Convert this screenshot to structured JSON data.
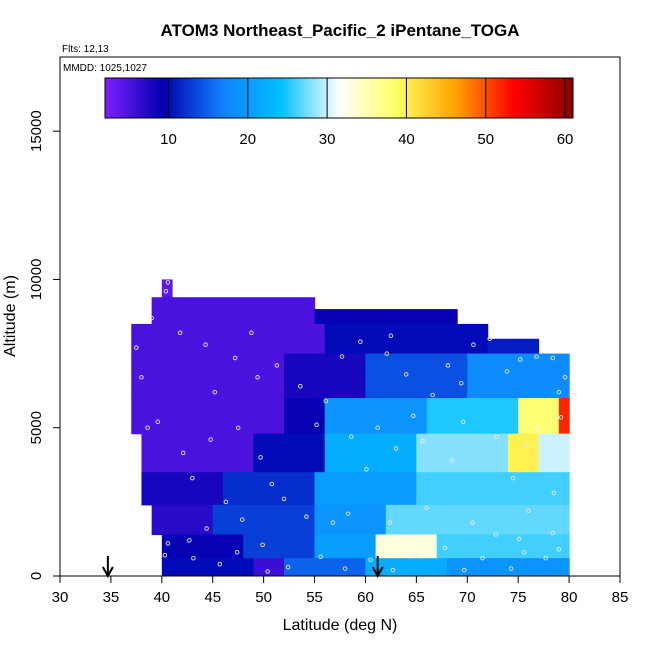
{
  "chart_data": {
    "type": "heatmap",
    "title": "ATOM3 Northeast_Pacific_2 iPentane_TOGA",
    "flights_label": "Flts: 12,13",
    "dates_label": "MMDD: 1025,1027",
    "xlabel": "Latitude (deg N)",
    "ylabel": "Altitude (m)",
    "xlim": [
      30,
      85
    ],
    "ylim": [
      0,
      17500
    ],
    "x_ticks": [
      "30",
      "35",
      "40",
      "45",
      "50",
      "55",
      "60",
      "65",
      "70",
      "75",
      "80",
      "85"
    ],
    "y_ticks": [
      "0",
      "5000",
      "10000",
      "15000"
    ],
    "colorbar": {
      "range": [
        2,
        61
      ],
      "ticks": [
        "10",
        "20",
        "30",
        "40",
        "50",
        "60"
      ],
      "palette": [
        "#7f1fff",
        "#0000b0",
        "#1080ff",
        "#00bfff",
        "#ffffff",
        "#ffff60",
        "#ffa000",
        "#ff0000",
        "#8b0000"
      ]
    },
    "arrows_lat": [
      34.7,
      61.2
    ],
    "cells": [
      {
        "lat": [
          40,
          41
        ],
        "alt": [
          9400,
          10000
        ],
        "v": 4
      },
      {
        "lat": [
          39,
          55
        ],
        "alt": [
          8500,
          9400
        ],
        "v": 5
      },
      {
        "lat": [
          55,
          69
        ],
        "alt": [
          8500,
          9000
        ],
        "v": 9
      },
      {
        "lat": [
          37,
          56
        ],
        "alt": [
          7500,
          8500
        ],
        "v": 5
      },
      {
        "lat": [
          56,
          72
        ],
        "alt": [
          7500,
          8500
        ],
        "v": 10
      },
      {
        "lat": [
          72,
          77
        ],
        "alt": [
          7500,
          8000
        ],
        "v": 11
      },
      {
        "lat": [
          37,
          52
        ],
        "alt": [
          6000,
          7500
        ],
        "v": 5
      },
      {
        "lat": [
          52,
          60
        ],
        "alt": [
          6000,
          7500
        ],
        "v": 8
      },
      {
        "lat": [
          60,
          70
        ],
        "alt": [
          6000,
          7500
        ],
        "v": 14
      },
      {
        "lat": [
          70,
          80
        ],
        "alt": [
          6000,
          7500
        ],
        "v": 18
      },
      {
        "lat": [
          37,
          52
        ],
        "alt": [
          4800,
          6000
        ],
        "v": 5
      },
      {
        "lat": [
          52,
          56
        ],
        "alt": [
          4800,
          6000
        ],
        "v": 9
      },
      {
        "lat": [
          56,
          66
        ],
        "alt": [
          4800,
          6000
        ],
        "v": 19
      },
      {
        "lat": [
          66,
          75
        ],
        "alt": [
          4800,
          6000
        ],
        "v": 25
      },
      {
        "lat": [
          75,
          79
        ],
        "alt": [
          4800,
          6000
        ],
        "v": 38
      },
      {
        "lat": [
          79,
          80
        ],
        "alt": [
          4800,
          6000
        ],
        "v": 52
      },
      {
        "lat": [
          38,
          49
        ],
        "alt": [
          3500,
          4800
        ],
        "v": 5
      },
      {
        "lat": [
          49,
          56
        ],
        "alt": [
          3500,
          4800
        ],
        "v": 10
      },
      {
        "lat": [
          56,
          65
        ],
        "alt": [
          3500,
          4800
        ],
        "v": 22
      },
      {
        "lat": [
          65,
          74
        ],
        "alt": [
          3500,
          4800
        ],
        "v": 28
      },
      {
        "lat": [
          74,
          77
        ],
        "alt": [
          3500,
          4800
        ],
        "v": 40
      },
      {
        "lat": [
          77,
          80
        ],
        "alt": [
          3500,
          4800
        ],
        "v": 30
      },
      {
        "lat": [
          38,
          46
        ],
        "alt": [
          2400,
          3500
        ],
        "v": 8
      },
      {
        "lat": [
          46,
          55
        ],
        "alt": [
          2400,
          3500
        ],
        "v": 12
      },
      {
        "lat": [
          55,
          65
        ],
        "alt": [
          2400,
          3500
        ],
        "v": 20
      },
      {
        "lat": [
          65,
          80
        ],
        "alt": [
          2400,
          3500
        ],
        "v": 26
      },
      {
        "lat": [
          39,
          45
        ],
        "alt": [
          1400,
          2400
        ],
        "v": 7
      },
      {
        "lat": [
          45,
          55
        ],
        "alt": [
          1400,
          2400
        ],
        "v": 13
      },
      {
        "lat": [
          55,
          62
        ],
        "alt": [
          1400,
          2400
        ],
        "v": 19
      },
      {
        "lat": [
          62,
          80
        ],
        "alt": [
          1400,
          2400
        ],
        "v": 27
      },
      {
        "lat": [
          40,
          48
        ],
        "alt": [
          600,
          1400
        ],
        "v": 9
      },
      {
        "lat": [
          48,
          55
        ],
        "alt": [
          600,
          1400
        ],
        "v": 13
      },
      {
        "lat": [
          55,
          61
        ],
        "alt": [
          600,
          1400
        ],
        "v": 20
      },
      {
        "lat": [
          61,
          67
        ],
        "alt": [
          600,
          1400
        ],
        "v": 33
      },
      {
        "lat": [
          67,
          80
        ],
        "alt": [
          600,
          1400
        ],
        "v": 26
      },
      {
        "lat": [
          40,
          49
        ],
        "alt": [
          0,
          600
        ],
        "v": 10
      },
      {
        "lat": [
          49,
          52
        ],
        "alt": [
          0,
          600
        ],
        "v": 6
      },
      {
        "lat": [
          52,
          60
        ],
        "alt": [
          0,
          600
        ],
        "v": 15
      },
      {
        "lat": [
          60,
          68
        ],
        "alt": [
          0,
          600
        ],
        "v": 22
      },
      {
        "lat": [
          68,
          80
        ],
        "alt": [
          0,
          600
        ],
        "v": 19
      }
    ],
    "points": [
      {
        "lat": 40.4,
        "alt": 9600
      },
      {
        "lat": 40.6,
        "alt": 9900
      },
      {
        "lat": 39.0,
        "alt": 8700
      },
      {
        "lat": 48.8,
        "alt": 8200
      },
      {
        "lat": 37.5,
        "alt": 7700
      },
      {
        "lat": 38.0,
        "alt": 6700
      },
      {
        "lat": 49.4,
        "alt": 6700
      },
      {
        "lat": 45.2,
        "alt": 6200
      },
      {
        "lat": 47.5,
        "alt": 5000
      },
      {
        "lat": 39.6,
        "alt": 5200
      },
      {
        "lat": 38.6,
        "alt": 5000
      },
      {
        "lat": 44.8,
        "alt": 4600
      },
      {
        "lat": 42.1,
        "alt": 4150
      },
      {
        "lat": 49.7,
        "alt": 4000
      },
      {
        "lat": 43.0,
        "alt": 3300
      },
      {
        "lat": 55.2,
        "alt": 5100
      },
      {
        "lat": 57.7,
        "alt": 7400
      },
      {
        "lat": 59.5,
        "alt": 7900
      },
      {
        "lat": 62.1,
        "alt": 7500
      },
      {
        "lat": 62.5,
        "alt": 8100
      },
      {
        "lat": 64.0,
        "alt": 6800
      },
      {
        "lat": 66.6,
        "alt": 6100
      },
      {
        "lat": 68.1,
        "alt": 7100
      },
      {
        "lat": 69.4,
        "alt": 6500
      },
      {
        "lat": 70.6,
        "alt": 7800
      },
      {
        "lat": 72.2,
        "alt": 8000
      },
      {
        "lat": 73.9,
        "alt": 6900
      },
      {
        "lat": 75.2,
        "alt": 7300
      },
      {
        "lat": 76.8,
        "alt": 7400
      },
      {
        "lat": 78.4,
        "alt": 7350
      },
      {
        "lat": 79.6,
        "alt": 6700
      },
      {
        "lat": 79.0,
        "alt": 6200
      },
      {
        "lat": 61.2,
        "alt": 5000
      },
      {
        "lat": 64.7,
        "alt": 5400
      },
      {
        "lat": 69.6,
        "alt": 5200
      },
      {
        "lat": 72.9,
        "alt": 4700
      },
      {
        "lat": 75.8,
        "alt": 4400
      },
      {
        "lat": 77.2,
        "alt": 3900
      },
      {
        "lat": 74.5,
        "alt": 3300
      },
      {
        "lat": 78.5,
        "alt": 2800
      },
      {
        "lat": 76.0,
        "alt": 2200
      },
      {
        "lat": 70.5,
        "alt": 1800
      },
      {
        "lat": 66.0,
        "alt": 2300
      },
      {
        "lat": 62.4,
        "alt": 1800
      },
      {
        "lat": 58.3,
        "alt": 2100
      },
      {
        "lat": 56.8,
        "alt": 1800
      },
      {
        "lat": 54.2,
        "alt": 2000
      },
      {
        "lat": 52.0,
        "alt": 2600
      },
      {
        "lat": 50.8,
        "alt": 3100
      },
      {
        "lat": 47.9,
        "alt": 1900
      },
      {
        "lat": 46.3,
        "alt": 2500
      },
      {
        "lat": 44.4,
        "alt": 1600
      },
      {
        "lat": 42.7,
        "alt": 1200
      },
      {
        "lat": 40.6,
        "alt": 1100
      },
      {
        "lat": 40.3,
        "alt": 700
      },
      {
        "lat": 43.1,
        "alt": 600
      },
      {
        "lat": 45.7,
        "alt": 400
      },
      {
        "lat": 47.4,
        "alt": 800
      },
      {
        "lat": 49.9,
        "alt": 1050
      },
      {
        "lat": 50.4,
        "alt": 150
      },
      {
        "lat": 52.4,
        "alt": 300
      },
      {
        "lat": 55.6,
        "alt": 650
      },
      {
        "lat": 58.0,
        "alt": 250
      },
      {
        "lat": 60.5,
        "alt": 550
      },
      {
        "lat": 62.7,
        "alt": 200
      },
      {
        "lat": 64.9,
        "alt": 700
      },
      {
        "lat": 67.8,
        "alt": 950
      },
      {
        "lat": 69.7,
        "alt": 200
      },
      {
        "lat": 71.5,
        "alt": 600
      },
      {
        "lat": 74.3,
        "alt": 250
      },
      {
        "lat": 75.6,
        "alt": 800
      },
      {
        "lat": 77.7,
        "alt": 600
      },
      {
        "lat": 79.0,
        "alt": 900
      },
      {
        "lat": 78.4,
        "alt": 1450
      },
      {
        "lat": 75.1,
        "alt": 1250
      },
      {
        "lat": 72.8,
        "alt": 1400
      },
      {
        "lat": 68.5,
        "alt": 3900
      },
      {
        "lat": 65.6,
        "alt": 4550
      },
      {
        "lat": 63.0,
        "alt": 4300
      },
      {
        "lat": 60.1,
        "alt": 3600
      },
      {
        "lat": 58.6,
        "alt": 4700
      },
      {
        "lat": 56.1,
        "alt": 5900
      },
      {
        "lat": 53.6,
        "alt": 6400
      },
      {
        "lat": 51.3,
        "alt": 7100
      },
      {
        "lat": 47.2,
        "alt": 7350
      },
      {
        "lat": 44.3,
        "alt": 7800
      },
      {
        "lat": 41.8,
        "alt": 8200
      },
      {
        "lat": 79.2,
        "alt": 5350
      },
      {
        "lat": 76.9,
        "alt": 5000
      }
    ]
  }
}
